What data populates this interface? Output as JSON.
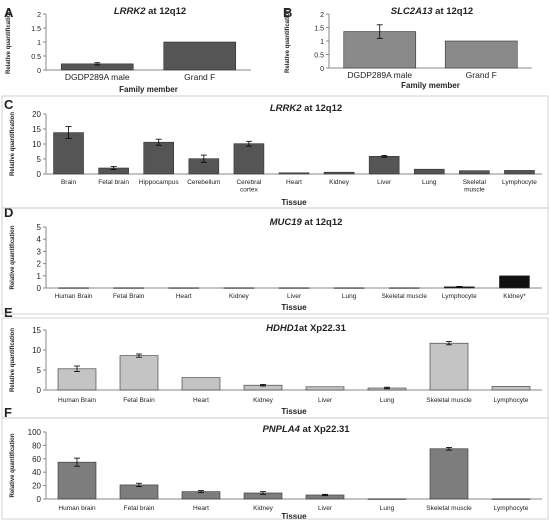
{
  "chart_data": [
    {
      "panel": "A",
      "type": "bar",
      "title_gene": "LRRK2",
      "title_rest": " at 12q12",
      "xlabel": "Family  member",
      "ylabel": "Relative quantification",
      "ylim": [
        0,
        2
      ],
      "yticks": [
        0,
        0.5,
        1,
        1.5,
        2
      ],
      "ytick_labels": [
        "0",
        "0.5",
        "1",
        "1.5",
        "2"
      ],
      "categories": [
        "DGDP289A male",
        "Grand F"
      ],
      "values": [
        0.22,
        1.0
      ],
      "errors": [
        0.04,
        0.0
      ],
      "color": "#555555"
    },
    {
      "panel": "B",
      "type": "bar",
      "title_gene": "SLC2A13",
      "title_rest": " at 12q12",
      "xlabel": "Family  member",
      "ylabel": "Relative quantification",
      "ylim": [
        0,
        2
      ],
      "yticks": [
        0,
        0.5,
        1,
        1.5,
        2
      ],
      "ytick_labels": [
        "0",
        "0.5",
        "1",
        "1.5",
        "2"
      ],
      "categories": [
        "DGDP289A male",
        "Grand F"
      ],
      "values": [
        1.35,
        1.0
      ],
      "errors": [
        0.25,
        0.0
      ],
      "color": "#8a8a8a"
    },
    {
      "panel": "C",
      "type": "bar",
      "title_gene": "LRRK2",
      "title_rest": " at 12q12",
      "xlabel": "Tissue",
      "ylabel": "Relative quantification",
      "ylim": [
        0,
        20
      ],
      "yticks": [
        0,
        5,
        10,
        15,
        20
      ],
      "ytick_labels": [
        "0",
        "5",
        "10",
        "15",
        "20"
      ],
      "categories": [
        "Brain",
        "Fetal brain",
        "Hippocampus",
        "Cerebellum",
        "Cerebral\ncortex",
        "Heart",
        "Kidney",
        "Liver",
        "Lung",
        "Skeletal\nmuscle",
        "Lymphocyte"
      ],
      "values": [
        13.8,
        2.0,
        10.6,
        5.1,
        10.1,
        0.4,
        0.6,
        5.9,
        1.6,
        1.1,
        1.2
      ],
      "errors": [
        2.0,
        0.5,
        1.0,
        1.2,
        0.8,
        0.0,
        0.0,
        0.3,
        0.0,
        0.0,
        0.0
      ],
      "color": "#555555"
    },
    {
      "panel": "D",
      "type": "bar",
      "title_gene": "MUC19",
      "title_rest": " at 12q12",
      "xlabel": "Tissue",
      "ylabel": "Relative quantification",
      "ylim": [
        0,
        5
      ],
      "yticks": [
        0,
        1,
        2,
        3,
        4,
        5
      ],
      "ytick_labels": [
        "0",
        "1",
        "2",
        "3",
        "4",
        "5"
      ],
      "categories": [
        "Human Brain",
        "Fetal Brain",
        "Heart",
        "Kidney",
        "Liver",
        "Lung",
        "Skeletal muscle",
        "Lymphocyte",
        "Kidney*"
      ],
      "values": [
        0.02,
        0.02,
        0.02,
        0.02,
        0.02,
        0.02,
        0.02,
        0.1,
        1.0
      ],
      "errors": [
        0,
        0,
        0,
        0,
        0,
        0,
        0,
        0.03,
        0
      ],
      "color": "#111111"
    },
    {
      "panel": "E",
      "type": "bar",
      "title_gene": "HDHD1",
      "title_rest": "at Xp22.31",
      "xlabel": "Tissue",
      "ylabel": "Relative quantification",
      "ylim": [
        0,
        15
      ],
      "yticks": [
        0,
        5,
        10,
        15
      ],
      "ytick_labels": [
        "0",
        "5",
        "10",
        "15"
      ],
      "categories": [
        "Human Brain",
        "Fetal Brain",
        "Heart",
        "Kidney",
        "Liver",
        "Lung",
        "Skeletal muscle",
        "Lymphocyte"
      ],
      "values": [
        5.3,
        8.6,
        3.1,
        1.2,
        0.8,
        0.5,
        11.7,
        0.9
      ],
      "errors": [
        0.7,
        0.4,
        0.0,
        0.2,
        0.0,
        0.2,
        0.4,
        0.0
      ],
      "color": "#c4c4c4"
    },
    {
      "panel": "F",
      "type": "bar",
      "title_gene": "PNPLA4",
      "title_rest": " at Xp22.31",
      "xlabel": "Tissue",
      "ylabel": "Relative quantification",
      "ylim": [
        0,
        100
      ],
      "yticks": [
        0,
        20,
        40,
        60,
        80,
        100
      ],
      "ytick_labels": [
        "0",
        "20",
        "40",
        "60",
        "80",
        "100"
      ],
      "categories": [
        "Human brain",
        "Fetal brain",
        "Heart",
        "Kidney",
        "Liver",
        "Lung",
        "Skeletal muscle",
        "Lymphocyte"
      ],
      "values": [
        55,
        21,
        11,
        9,
        6,
        0.3,
        75,
        0.3
      ],
      "errors": [
        6,
        2.5,
        1.5,
        2,
        1,
        0,
        2,
        0
      ],
      "color": "#7d7d7d"
    }
  ]
}
